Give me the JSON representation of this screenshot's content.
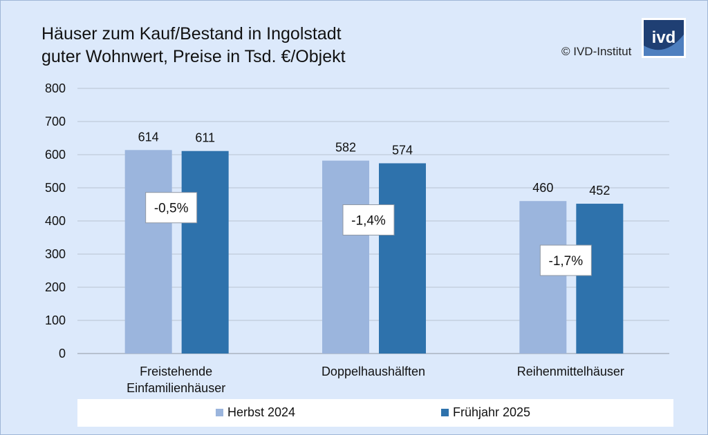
{
  "title_line1": "Häuser zum Kauf/Bestand in Ingolstadt",
  "title_line2": "guter Wohnwert, Preise in Tsd. €/Objekt",
  "copyright": "© IVD-Institut",
  "logo_text": "ivd",
  "colors": {
    "background": "#dce9fb",
    "series1": "#9bb5dd",
    "series2": "#2e72ac",
    "grid": "#b9c3d1"
  },
  "chart_data": {
    "type": "bar",
    "categories": [
      [
        "Freistehende",
        "Einfamilienhäuser"
      ],
      [
        "Doppelhaushälften"
      ],
      [
        "Reihenmittelhäuser"
      ]
    ],
    "series": [
      {
        "name": "Herbst 2024",
        "values": [
          614,
          582,
          460
        ]
      },
      {
        "name": "Frühjahr 2025",
        "values": [
          611,
          574,
          452
        ]
      }
    ],
    "change_labels": [
      "-0,5%",
      "-1,4%",
      "-1,7%"
    ],
    "yticks": [
      0,
      100,
      200,
      300,
      400,
      500,
      600,
      700,
      800
    ],
    "ylim": [
      0,
      800
    ],
    "grid": true,
    "legend_position": "bottom"
  }
}
